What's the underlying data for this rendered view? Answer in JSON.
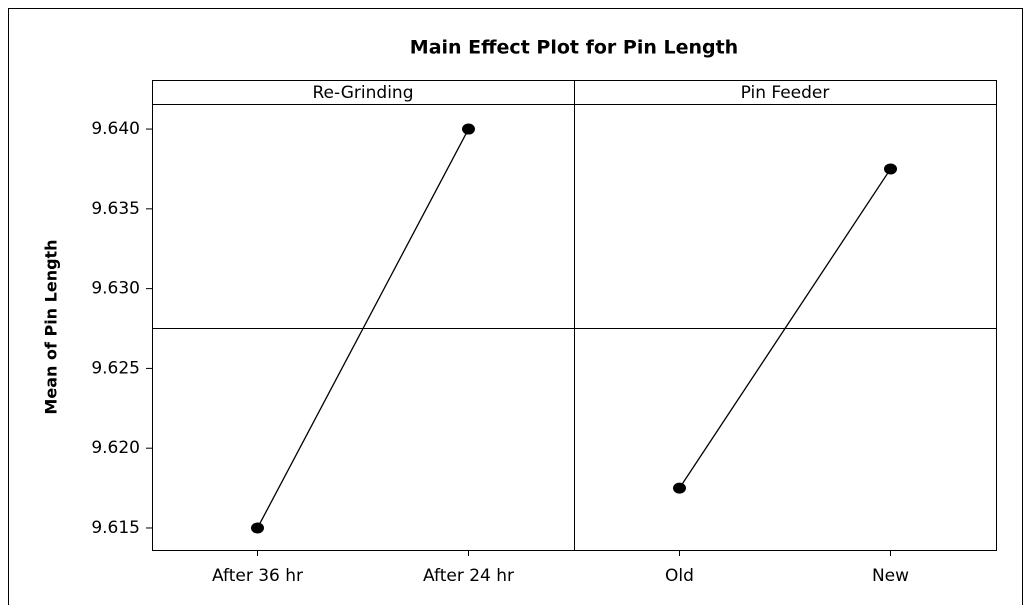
{
  "chart_data": {
    "type": "line",
    "title": "Main Effect Plot for Pin Length",
    "ylabel": "Mean of Pin Length",
    "color": "#000000",
    "ylim": [
      9.61362,
      9.64157
    ],
    "yticks": [
      9.615,
      {
        "value": 9.62,
        "label": "9.620"
      },
      9.625,
      {
        "value": 9.63,
        "label": "9.630"
      },
      9.635,
      {
        "value": 9.64,
        "label": "9.640"
      }
    ],
    "reference_line": 9.6275,
    "panels": [
      {
        "title": "Re-Grinding",
        "categories": [
          "After 36 hr",
          "After 24 hr"
        ],
        "values": [
          9.615,
          9.64
        ]
      },
      {
        "title": "Pin Feeder",
        "categories": [
          "Old",
          "New"
        ],
        "values": [
          9.6175,
          9.6375
        ]
      }
    ]
  }
}
